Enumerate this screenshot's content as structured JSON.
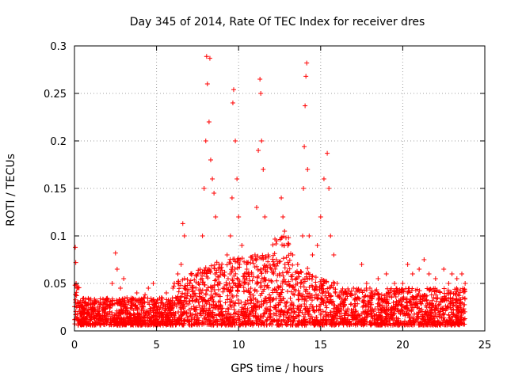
{
  "chart_data": {
    "type": "scatter",
    "title": "Day 345 of 2014, Rate Of TEC Index for receiver dres",
    "xlabel": "GPS time / hours",
    "ylabel": "ROTI / TECUs",
    "xlim": [
      0,
      25
    ],
    "ylim": [
      0,
      0.3
    ],
    "xticks": [
      0,
      5,
      10,
      15,
      20,
      25
    ],
    "yticks": [
      0,
      0.05,
      0.1,
      0.15,
      0.2,
      0.25,
      0.3
    ],
    "xtick_labels": [
      "0",
      "5",
      "10",
      "15",
      "20",
      "25"
    ],
    "ytick_labels": [
      "0",
      "0.05",
      "0.1",
      "0.15",
      "0.2",
      "0.25",
      "0.3"
    ],
    "grid": true,
    "marker": "+",
    "marker_color": "#ff0000",
    "series": [
      {
        "name": "ROTI",
        "points": [
          [
            0.05,
            0.088
          ],
          [
            0.08,
            0.072
          ],
          [
            0.1,
            0.05
          ],
          [
            0.15,
            0.045
          ],
          [
            0.2,
            0.03
          ],
          [
            0.3,
            0.025
          ],
          [
            0.5,
            0.02
          ],
          [
            0.8,
            0.028
          ],
          [
            1.0,
            0.022
          ],
          [
            1.2,
            0.018
          ],
          [
            1.4,
            0.025
          ],
          [
            1.6,
            0.03
          ],
          [
            1.8,
            0.02
          ],
          [
            2.0,
            0.028
          ],
          [
            2.3,
            0.05
          ],
          [
            2.5,
            0.082
          ],
          [
            2.6,
            0.065
          ],
          [
            2.8,
            0.045
          ],
          [
            3.0,
            0.055
          ],
          [
            3.2,
            0.035
          ],
          [
            3.5,
            0.03
          ],
          [
            3.8,
            0.04
          ],
          [
            4.0,
            0.032
          ],
          [
            4.3,
            0.038
          ],
          [
            4.5,
            0.045
          ],
          [
            4.8,
            0.05
          ],
          [
            5.0,
            0.03
          ],
          [
            5.3,
            0.035
          ],
          [
            5.6,
            0.04
          ],
          [
            6.0,
            0.045
          ],
          [
            6.3,
            0.06
          ],
          [
            6.5,
            0.07
          ],
          [
            6.6,
            0.113
          ],
          [
            6.7,
            0.1
          ],
          [
            6.9,
            0.05
          ],
          [
            7.2,
            0.045
          ],
          [
            7.5,
            0.06
          ],
          [
            7.8,
            0.1
          ],
          [
            7.9,
            0.15
          ],
          [
            8.0,
            0.2
          ],
          [
            8.05,
            0.289
          ],
          [
            8.1,
            0.26
          ],
          [
            8.2,
            0.22
          ],
          [
            8.25,
            0.287
          ],
          [
            8.3,
            0.18
          ],
          [
            8.4,
            0.16
          ],
          [
            8.5,
            0.145
          ],
          [
            8.6,
            0.12
          ],
          [
            8.8,
            0.07
          ],
          [
            9.0,
            0.06
          ],
          [
            9.3,
            0.08
          ],
          [
            9.5,
            0.1
          ],
          [
            9.6,
            0.14
          ],
          [
            9.65,
            0.24
          ],
          [
            9.7,
            0.254
          ],
          [
            9.8,
            0.2
          ],
          [
            9.9,
            0.16
          ],
          [
            10.0,
            0.12
          ],
          [
            10.2,
            0.09
          ],
          [
            10.5,
            0.07
          ],
          [
            10.8,
            0.06
          ],
          [
            11.0,
            0.08
          ],
          [
            11.1,
            0.13
          ],
          [
            11.2,
            0.19
          ],
          [
            11.3,
            0.265
          ],
          [
            11.35,
            0.25
          ],
          [
            11.4,
            0.2
          ],
          [
            11.5,
            0.17
          ],
          [
            11.6,
            0.12
          ],
          [
            11.8,
            0.08
          ],
          [
            12.0,
            0.065
          ],
          [
            12.3,
            0.075
          ],
          [
            12.6,
            0.14
          ],
          [
            12.7,
            0.12
          ],
          [
            12.8,
            0.105
          ],
          [
            13.0,
            0.09
          ],
          [
            13.3,
            0.08
          ],
          [
            13.6,
            0.07
          ],
          [
            13.9,
            0.1
          ],
          [
            13.95,
            0.15
          ],
          [
            14.0,
            0.194
          ],
          [
            14.05,
            0.237
          ],
          [
            14.1,
            0.268
          ],
          [
            14.15,
            0.282
          ],
          [
            14.2,
            0.17
          ],
          [
            14.3,
            0.1
          ],
          [
            14.5,
            0.08
          ],
          [
            14.8,
            0.09
          ],
          [
            15.0,
            0.12
          ],
          [
            15.2,
            0.16
          ],
          [
            15.4,
            0.187
          ],
          [
            15.5,
            0.15
          ],
          [
            15.6,
            0.1
          ],
          [
            15.8,
            0.08
          ],
          [
            16.0,
            0.05
          ],
          [
            16.5,
            0.04
          ],
          [
            17.0,
            0.045
          ],
          [
            17.5,
            0.07
          ],
          [
            17.8,
            0.05
          ],
          [
            18.0,
            0.045
          ],
          [
            18.5,
            0.055
          ],
          [
            19.0,
            0.06
          ],
          [
            19.5,
            0.05
          ],
          [
            20.0,
            0.05
          ],
          [
            20.3,
            0.07
          ],
          [
            20.6,
            0.06
          ],
          [
            21.0,
            0.065
          ],
          [
            21.3,
            0.075
          ],
          [
            21.6,
            0.06
          ],
          [
            22.0,
            0.055
          ],
          [
            22.5,
            0.065
          ],
          [
            22.8,
            0.05
          ],
          [
            23.0,
            0.06
          ],
          [
            23.3,
            0.055
          ],
          [
            23.6,
            0.06
          ],
          [
            23.8,
            0.05
          ]
        ]
      }
    ],
    "band_density_note": "dense cloud of points between 0.005 and ~0.05 across the whole day"
  }
}
